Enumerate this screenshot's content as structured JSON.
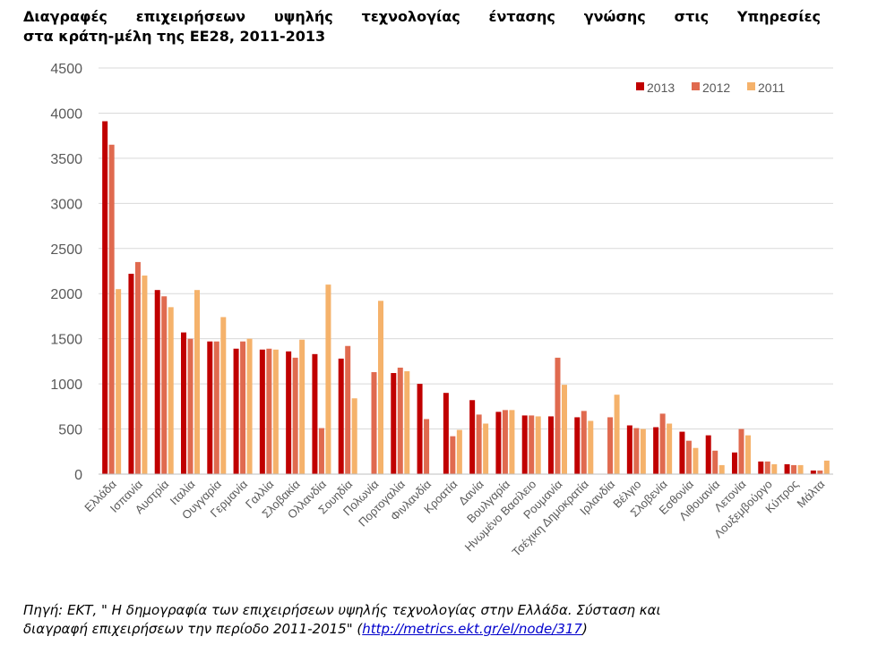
{
  "chart_data": {
    "type": "bar",
    "title_line1": "Διαγραφές επιχειρήσεων υψηλής τεχνολογίας έντασης γνώσης στις Υπηρεσίες",
    "title_line2": "στα κράτη-μέλη της ΕΕ28, 2011-2013",
    "ylim": [
      0,
      4500
    ],
    "yticks": [
      "0",
      "500",
      "1000",
      "1500",
      "2000",
      "2500",
      "3000",
      "3500",
      "4000",
      "4500"
    ],
    "grid": true,
    "legend_position": "top-right",
    "categories": [
      "Ελλάδα",
      "Ισπανία",
      "Αυστρία",
      "Ιταλία",
      "Ουγγαρία",
      "Γερμανία",
      "Γαλλία",
      "Σλοβακία",
      "Ολλανδία",
      "Σουηδία",
      "Πολωνία",
      "Πορτογαλία",
      "Φινλανδία",
      "Κροατία",
      "Δανία",
      "Βουλγαρία",
      "Ηνωμένο Βασίλειο",
      "Ρουμανία",
      "Τσέχικη Δημοκρατία",
      "Ιρλανδία",
      "Βέλγιο",
      "Σλοβενία",
      "Εσθονία",
      "Λιθουανία",
      "Λετονία",
      "Λουξεμβούργο",
      "Κύπρος",
      "Μάλτα"
    ],
    "series": [
      {
        "name": "2013",
        "color": "#c00000",
        "values": [
          3910,
          2220,
          2040,
          1570,
          1470,
          1390,
          1380,
          1360,
          1330,
          1280,
          0,
          1120,
          1000,
          900,
          820,
          690,
          650,
          640,
          630,
          0,
          540,
          520,
          470,
          430,
          240,
          140,
          110,
          40
        ]
      },
      {
        "name": "2012",
        "color": "#e06a4f",
        "values": [
          3650,
          2350,
          1970,
          1500,
          1470,
          1470,
          1390,
          1290,
          510,
          1420,
          1130,
          1180,
          610,
          420,
          660,
          710,
          650,
          1290,
          700,
          630,
          510,
          670,
          370,
          260,
          500,
          140,
          100,
          40
        ]
      },
      {
        "name": "2011",
        "color": "#f5b26b",
        "values": [
          2050,
          2200,
          1850,
          2040,
          1740,
          1500,
          1380,
          1490,
          2100,
          840,
          1920,
          1140,
          0,
          490,
          560,
          710,
          640,
          990,
          590,
          880,
          500,
          560,
          290,
          100,
          430,
          110,
          100,
          150
        ]
      }
    ]
  },
  "source": {
    "line1": "Πηγή: ΕΚΤ, \" Η δημογραφία των επιχειρήσεων υψηλής τεχνολογίας στην Ελλάδα. Σύσταση και",
    "line2_prefix": "διαγραφή επιχειρήσεων την περίοδο 2011-2015\" (",
    "link": "http://metrics.ekt.gr/el/node/317",
    "line2_suffix": ")"
  }
}
